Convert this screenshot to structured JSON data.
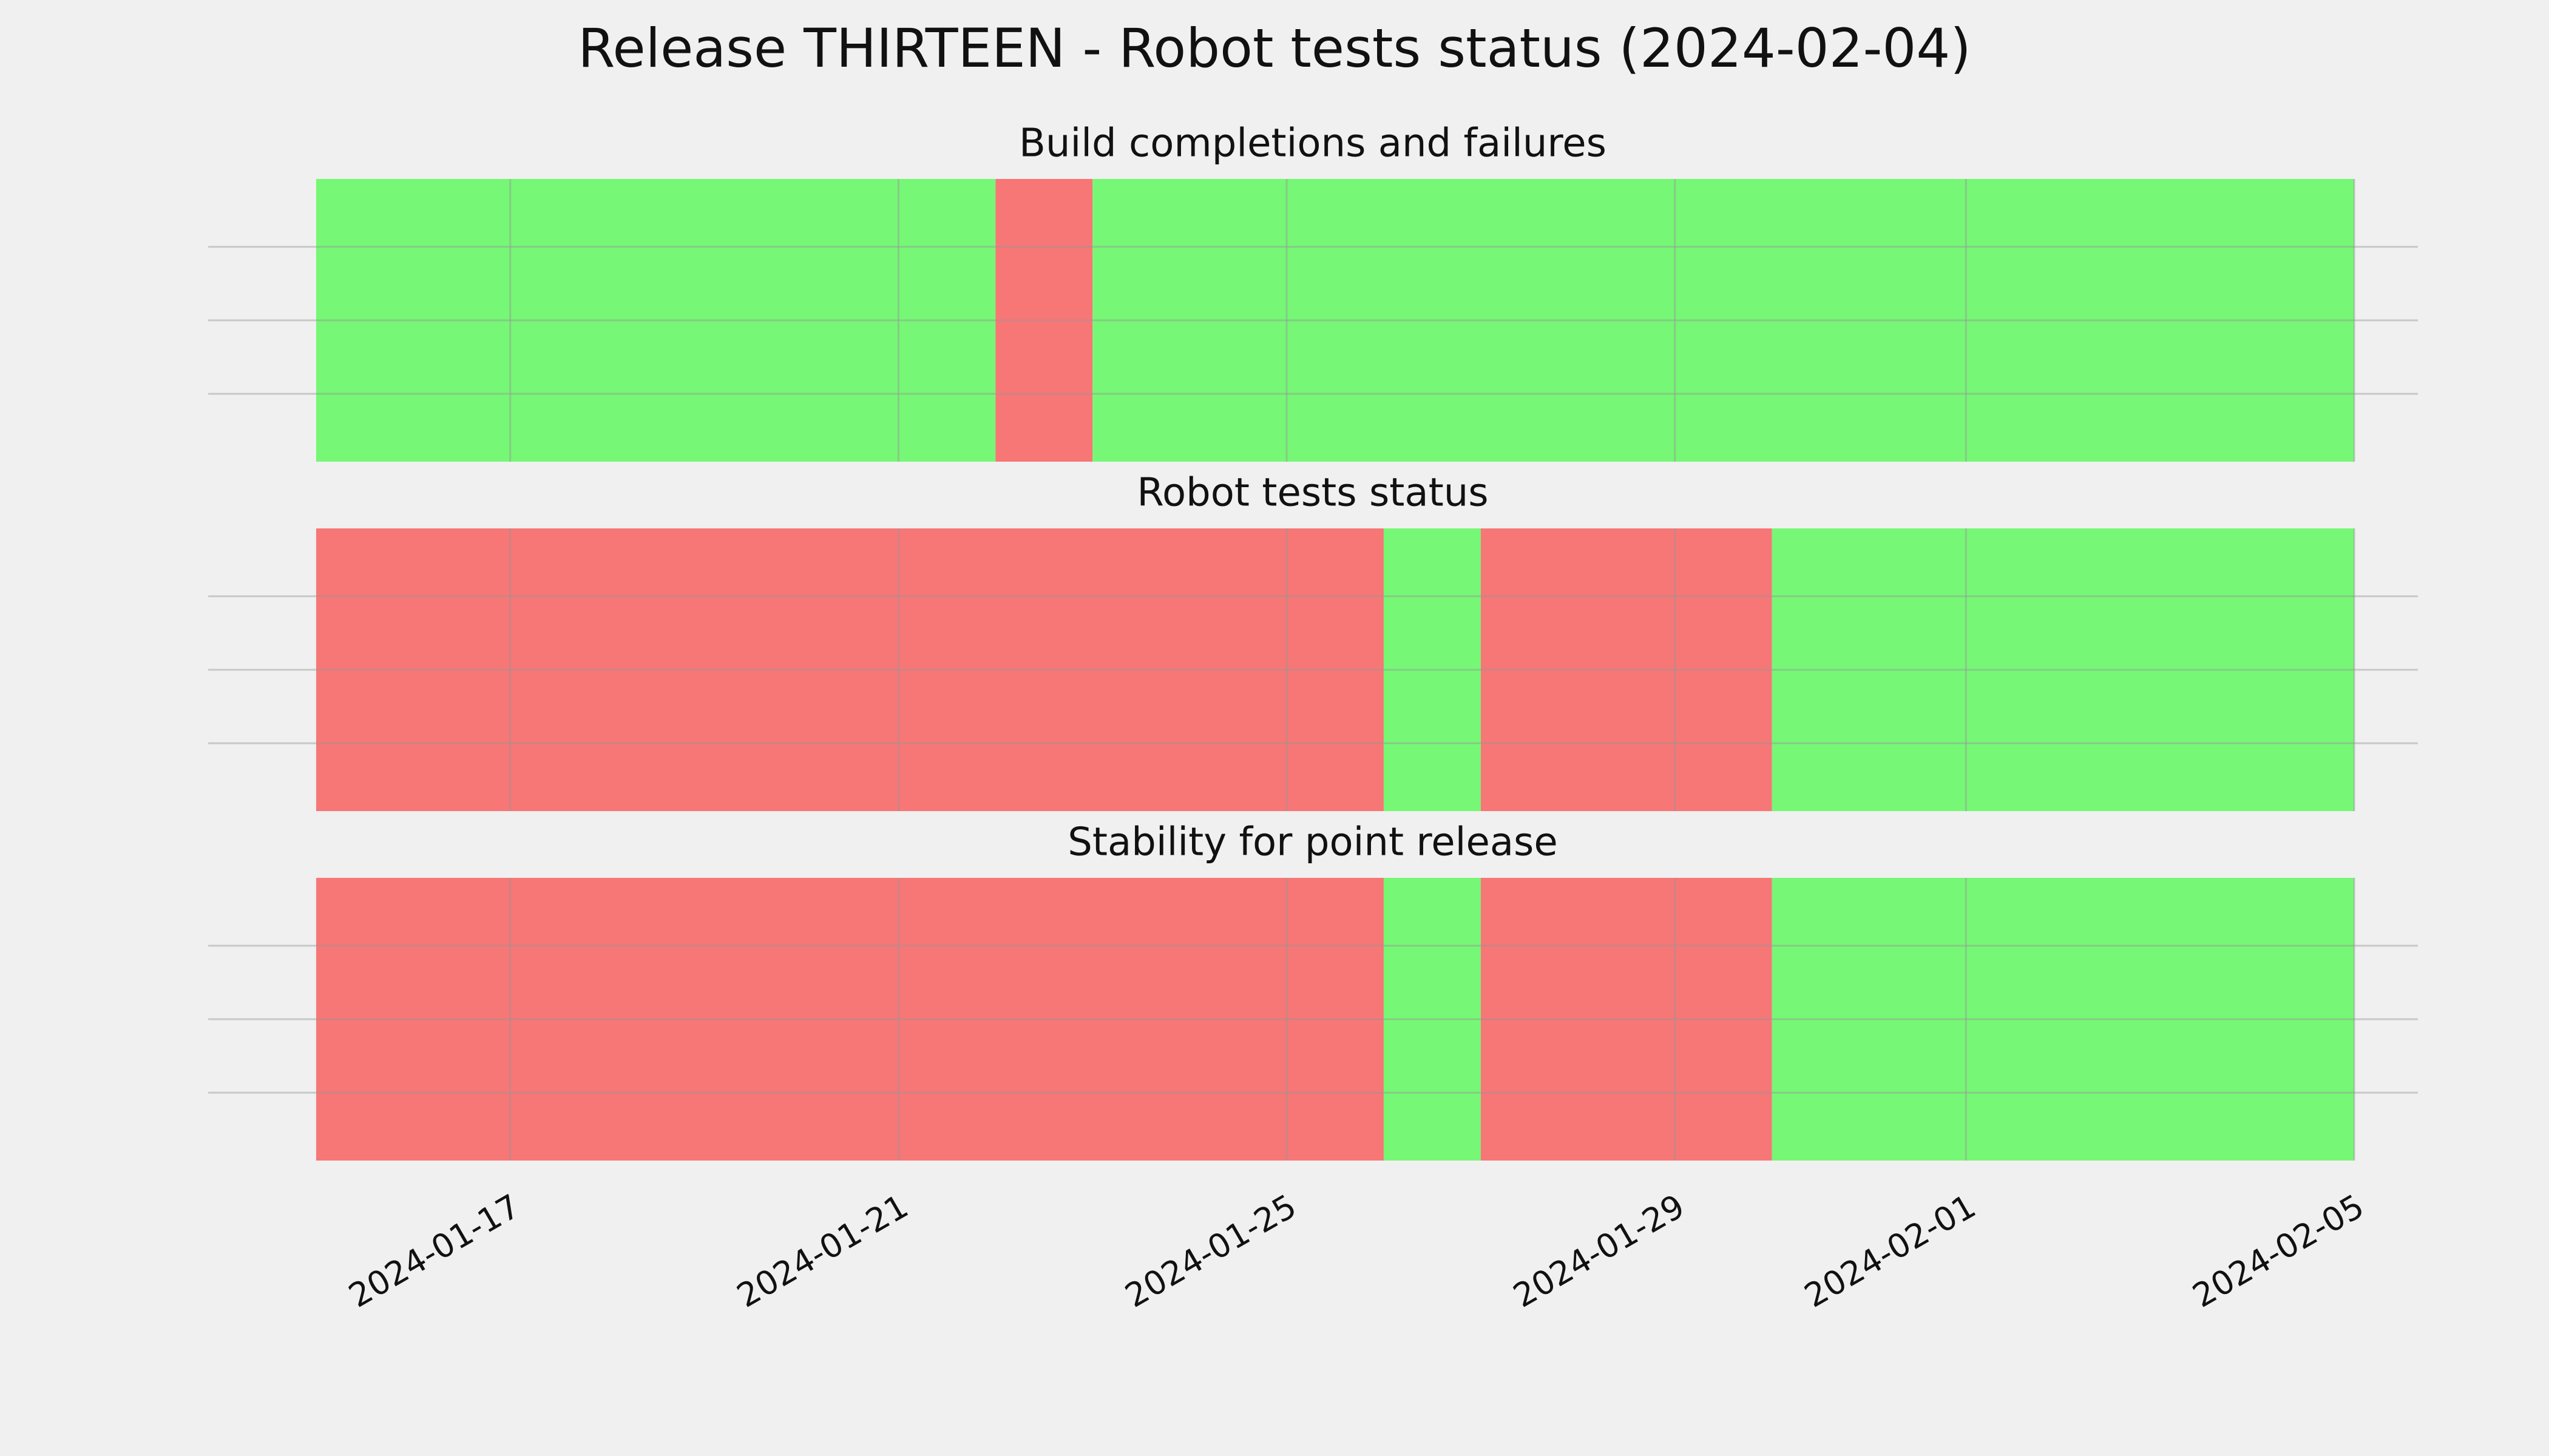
{
  "chart_data": {
    "type": "timeline",
    "title": "Release THIRTEEN - Robot tests status (2024-02-04)",
    "xlim": [
      "2024-01-14",
      "2024-02-06"
    ],
    "xticks": [
      "2024-01-17",
      "2024-01-21",
      "2024-01-25",
      "2024-01-29",
      "2024-02-01",
      "2024-02-05"
    ],
    "grid": true,
    "panels": [
      {
        "title": "Build completions and failures",
        "segments": [
          {
            "start": "2024-01-15",
            "end": "2024-01-22",
            "color": "#76f776"
          },
          {
            "start": "2024-01-22",
            "end": "2024-01-23",
            "color": "#f77676"
          },
          {
            "start": "2024-01-23",
            "end": "2024-02-05",
            "color": "#76f776"
          }
        ]
      },
      {
        "title": "Robot tests status",
        "segments": [
          {
            "start": "2024-01-15",
            "end": "2024-01-26",
            "color": "#f77676"
          },
          {
            "start": "2024-01-26",
            "end": "2024-01-27",
            "color": "#76f776"
          },
          {
            "start": "2024-01-27",
            "end": "2024-01-30",
            "color": "#f77676"
          },
          {
            "start": "2024-01-30",
            "end": "2024-02-05",
            "color": "#76f776"
          }
        ]
      },
      {
        "title": "Stability for point release",
        "segments": [
          {
            "start": "2024-01-15",
            "end": "2024-01-26",
            "color": "#f77676"
          },
          {
            "start": "2024-01-26",
            "end": "2024-01-27",
            "color": "#76f776"
          },
          {
            "start": "2024-01-27",
            "end": "2024-01-30",
            "color": "#f77676"
          },
          {
            "start": "2024-01-30",
            "end": "2024-02-05",
            "color": "#76f776"
          }
        ]
      }
    ]
  }
}
